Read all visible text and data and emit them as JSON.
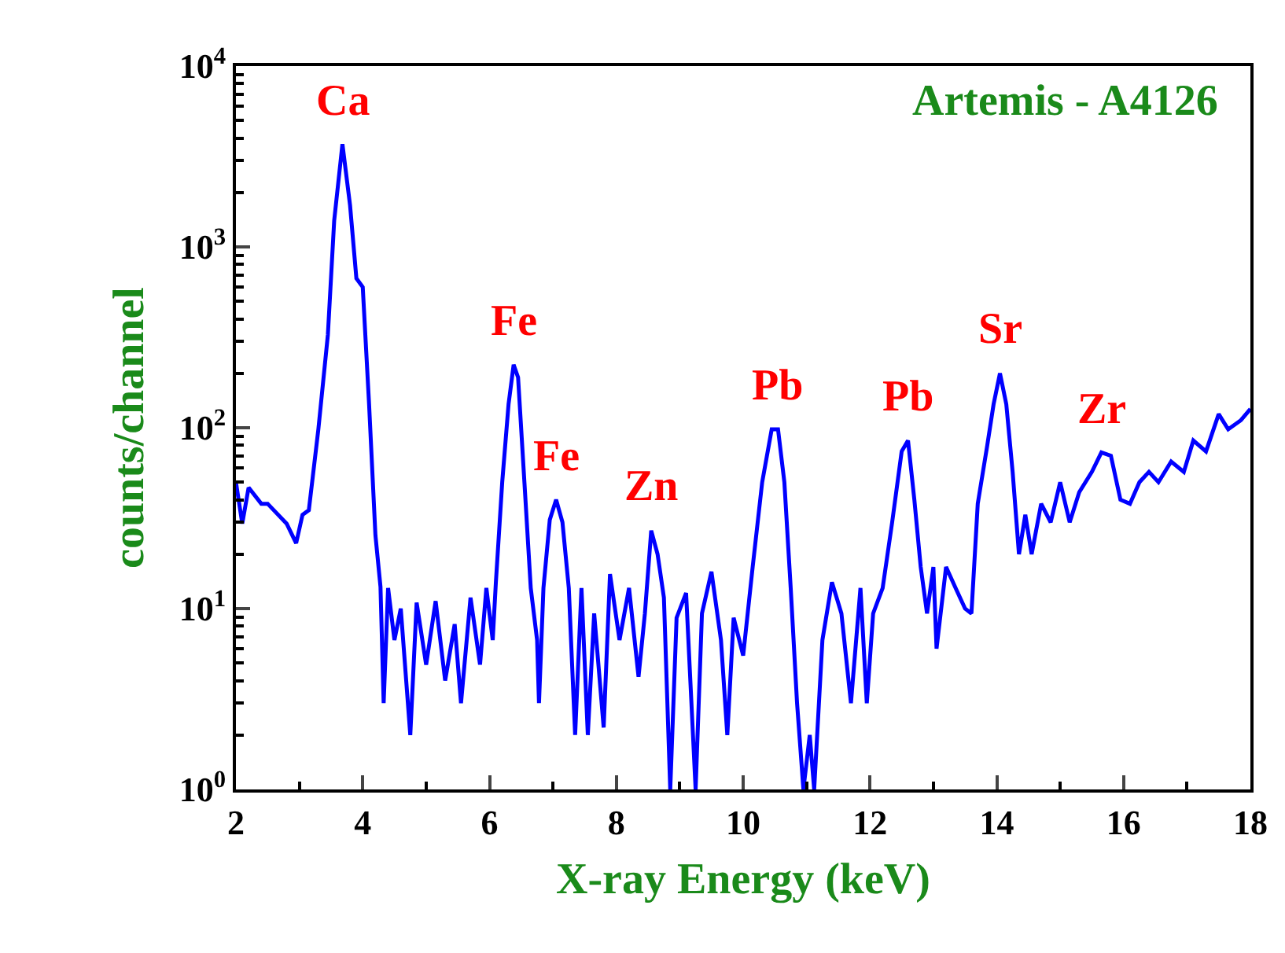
{
  "chart_data": {
    "type": "line",
    "title": "Artemis - A4126",
    "xlabel": "X-ray Energy (keV)",
    "ylabel": "counts/channel",
    "x": [
      2.0,
      2.1,
      2.2,
      2.4,
      2.5,
      2.8,
      2.95,
      3.05,
      3.15,
      3.3,
      3.45,
      3.55,
      3.68,
      3.8,
      3.9,
      4.0,
      4.1,
      4.2,
      4.28,
      4.33,
      4.4,
      4.5,
      4.6,
      4.75,
      4.85,
      5.0,
      5.15,
      5.3,
      5.45,
      5.55,
      5.7,
      5.85,
      5.95,
      6.05,
      6.1,
      6.2,
      6.3,
      6.38,
      6.45,
      6.55,
      6.65,
      6.75,
      6.78,
      6.85,
      6.95,
      7.05,
      7.15,
      7.25,
      7.35,
      7.45,
      7.55,
      7.65,
      7.8,
      7.9,
      8.05,
      8.2,
      8.35,
      8.45,
      8.55,
      8.65,
      8.75,
      8.85,
      8.95,
      9.1,
      9.25,
      9.35,
      9.5,
      9.65,
      9.75,
      9.85,
      10.0,
      10.15,
      10.3,
      10.45,
      10.55,
      10.65,
      10.75,
      10.85,
      10.95,
      11.05,
      11.12,
      11.25,
      11.4,
      11.55,
      11.7,
      11.85,
      11.95,
      12.05,
      12.2,
      12.35,
      12.5,
      12.6,
      12.7,
      12.8,
      12.9,
      13.0,
      13.05,
      13.2,
      13.35,
      13.5,
      13.6,
      13.7,
      13.85,
      13.95,
      14.05,
      14.15,
      14.25,
      14.35,
      14.45,
      14.55,
      14.7,
      14.85,
      15.0,
      15.15,
      15.3,
      15.5,
      15.65,
      15.8,
      15.95,
      16.1,
      16.25,
      16.4,
      16.55,
      16.75,
      16.95,
      17.1,
      17.3,
      17.5,
      17.65,
      17.85,
      18.0
    ],
    "series": [
      {
        "color": "#0000ff",
        "values": [
          50,
          29.5,
          46.7,
          38,
          38,
          29.5,
          23,
          33,
          35,
          98,
          326,
          1400,
          3700,
          1700,
          670,
          600,
          135,
          25.5,
          13.2,
          3,
          13,
          6.7,
          10,
          2,
          10.8,
          4.9,
          11,
          4,
          8.2,
          3,
          11.5,
          4.9,
          13,
          6.7,
          14,
          50,
          135,
          223,
          190,
          50,
          13,
          6.7,
          3,
          13,
          31,
          40,
          30,
          13,
          2,
          13,
          2,
          9.4,
          2.2,
          15.5,
          6.7,
          13,
          4.2,
          9.4,
          27,
          20,
          11.5,
          1,
          8.9,
          12.2,
          1,
          9.4,
          16,
          6.7,
          2,
          8.9,
          5.5,
          17,
          50,
          98,
          98,
          50,
          13,
          3,
          1,
          2,
          1,
          6.7,
          14,
          9.4,
          3,
          13,
          3,
          9.4,
          13,
          30,
          74,
          85,
          40,
          17,
          9.4,
          17,
          6,
          17,
          13,
          10,
          9.4,
          38,
          80,
          135,
          200,
          135,
          57,
          20,
          33,
          20,
          38,
          30,
          50,
          30,
          44,
          57,
          73,
          70,
          40,
          38,
          50,
          57,
          50,
          65,
          57,
          85,
          74,
          119,
          98,
          110,
          127
        ]
      }
    ],
    "xlim": [
      2,
      18
    ],
    "xticks": [
      2,
      4,
      6,
      8,
      10,
      12,
      14,
      16,
      18
    ],
    "ylim": [
      1,
      10000
    ],
    "yticks": [
      {
        "value": 1,
        "label": "10$^{0}$"
      },
      {
        "value": 10,
        "label": "10$^{1}$"
      },
      {
        "value": 100,
        "label": "10$^{2}$"
      },
      {
        "value": 1000,
        "label": "10$^{3}$"
      },
      {
        "value": 10000,
        "label": "10$^{4}$"
      }
    ],
    "log": "y",
    "marker": "none",
    "line_style": "solid",
    "annotations": [
      {
        "text": "Ca",
        "x": 3.68,
        "y": 3700
      },
      {
        "text": "Fe",
        "x": 6.38,
        "y": 223
      },
      {
        "text": "Fe",
        "x": 7.05,
        "y": 40
      },
      {
        "text": "Zn",
        "x": 8.55,
        "y": 27
      },
      {
        "text": "Pb",
        "x": 10.55,
        "y": 98
      },
      {
        "text": "Pb",
        "x": 12.6,
        "y": 85
      },
      {
        "text": "Sr",
        "x": 14.05,
        "y": 200
      },
      {
        "text": "Zr",
        "x": 15.65,
        "y": 73
      }
    ]
  }
}
